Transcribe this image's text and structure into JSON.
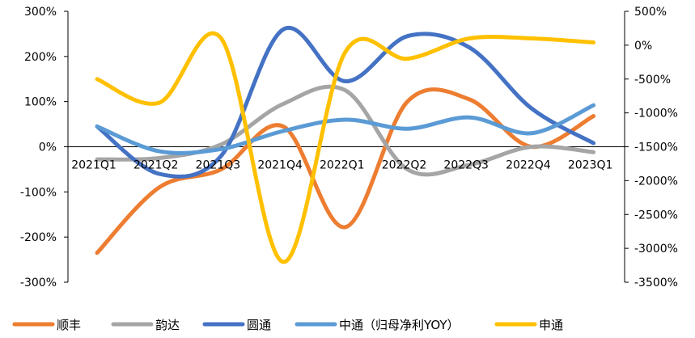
{
  "chart_data": {
    "type": "line",
    "title": "",
    "xlabel": "",
    "ylabel": "",
    "categories": [
      "2021Q1",
      "2021Q2",
      "2021Q3",
      "2021Q4",
      "2022Q1",
      "2022Q2",
      "2022Q3",
      "2022Q4",
      "2023Q1"
    ],
    "y_left": {
      "ylim": [
        -300,
        300
      ],
      "ticks": [
        300,
        200,
        100,
        0,
        -100,
        -200,
        -300
      ],
      "tick_labels": [
        "300%",
        "200%",
        "100%",
        "0%",
        "-100%",
        "-200%",
        "-300%"
      ]
    },
    "y_right": {
      "ylim": [
        -3500,
        500
      ],
      "ticks": [
        500,
        0,
        -500,
        -1000,
        -1500,
        -2000,
        -2500,
        -3000,
        -3500
      ],
      "tick_labels": [
        "500%",
        "0%",
        "-500%",
        "-1000%",
        "-1500%",
        "-2000%",
        "-2500%",
        "-3000%",
        "-3500%"
      ]
    },
    "grid": false,
    "legend_position": "bottom",
    "smooth": true,
    "series": [
      {
        "name": "顺丰",
        "axis": "left",
        "color": "#ED7D31",
        "values": [
          -235,
          -90,
          -50,
          45,
          -178,
          100,
          105,
          0,
          68
        ]
      },
      {
        "name": "韵达",
        "axis": "left",
        "color": "#A5A5A5",
        "values": [
          -28,
          -25,
          5,
          95,
          125,
          -50,
          -40,
          0,
          -12
        ]
      },
      {
        "name": "圆通",
        "axis": "left",
        "color": "#4472C4",
        "values": [
          45,
          -60,
          -20,
          260,
          145,
          245,
          220,
          85,
          8
        ]
      },
      {
        "name": "中通（归母净利YOY）",
        "axis": "left",
        "color": "#5B9BD5",
        "values": [
          45,
          -10,
          -5,
          35,
          60,
          40,
          65,
          30,
          92
        ]
      },
      {
        "name": "申通",
        "axis": "right",
        "color": "#FFC000",
        "values": [
          -500,
          -850,
          100,
          -3200,
          -100,
          -200,
          100,
          100,
          40
        ]
      }
    ]
  }
}
